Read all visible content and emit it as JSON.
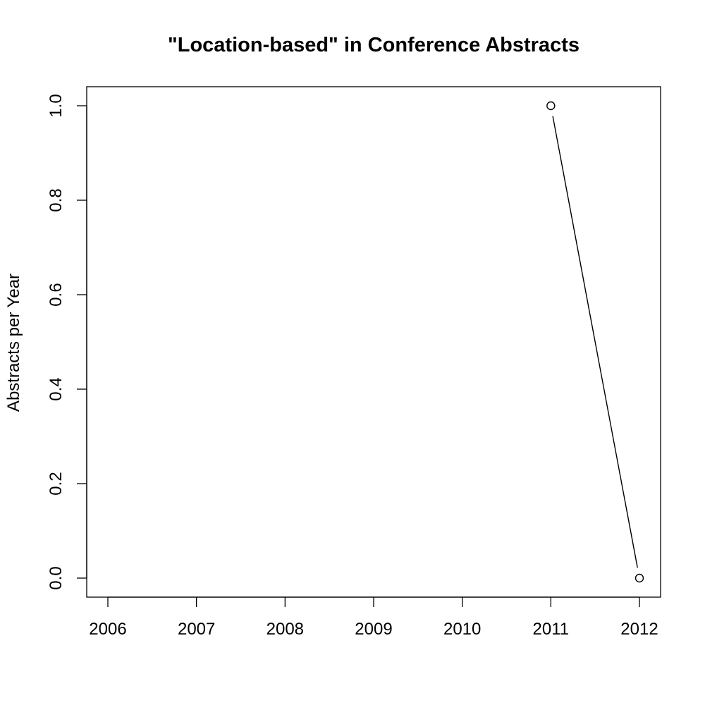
{
  "chart_data": {
    "type": "line",
    "title": "\"Location-based\" in Conference Abstracts",
    "xlabel": "",
    "ylabel": "Abstracts per Year",
    "x": [
      2011,
      2012
    ],
    "y": [
      1,
      0
    ],
    "xlim": [
      2006,
      2012
    ],
    "ylim": [
      0,
      1
    ],
    "x_ticks": [
      2006,
      2007,
      2008,
      2009,
      2010,
      2011,
      2012
    ],
    "y_ticks": [
      0,
      0.2,
      0.4,
      0.6,
      0.8,
      1
    ],
    "x_tick_labels": [
      "2006",
      "2007",
      "2008",
      "2009",
      "2010",
      "2011",
      "2012"
    ],
    "y_tick_labels": [
      "0.0",
      "0.2",
      "0.4",
      "0.6",
      "0.8",
      "1.0"
    ],
    "grid": false,
    "legend": "none",
    "markers": "open-circle",
    "line_color": "#000000"
  }
}
